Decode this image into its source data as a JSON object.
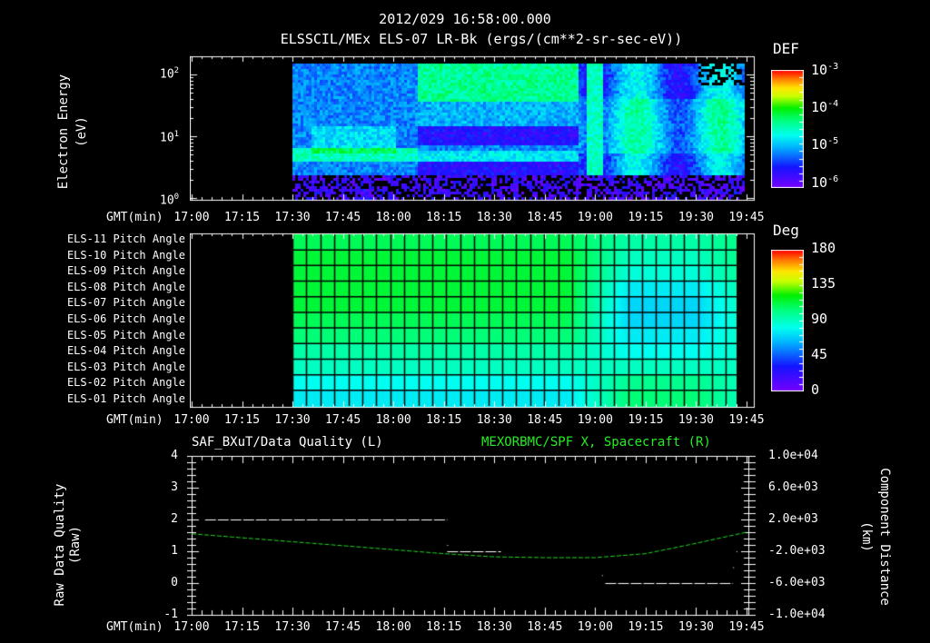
{
  "header": {
    "timestamp": "2012/029 16:58:00.000",
    "panel1_title": "ELSSCIL/MEx ELS-07 LR-Bk  (ergs/(cm**2-sr-sec-eV))"
  },
  "x_axis": {
    "label": "GMT(min)",
    "ticks": [
      "17:00",
      "17:15",
      "17:30",
      "17:45",
      "18:00",
      "18:15",
      "18:30",
      "18:45",
      "19:00",
      "19:15",
      "19:30",
      "19:45"
    ]
  },
  "panel1": {
    "ylabel": "Electron Energy",
    "yunit": "(eV)",
    "yticks": [
      {
        "base": "10",
        "exp": "2"
      },
      {
        "base": "10",
        "exp": "1"
      },
      {
        "base": "10",
        "exp": "0"
      }
    ],
    "colorbar": {
      "title": "DEF",
      "ticks": [
        {
          "base": "10",
          "exp": "-3"
        },
        {
          "base": "10",
          "exp": "-4"
        },
        {
          "base": "10",
          "exp": "-5"
        },
        {
          "base": "10",
          "exp": "-6"
        }
      ]
    }
  },
  "panel2": {
    "rows": [
      "ELS-11 Pitch Angle",
      "ELS-10 Pitch Angle",
      "ELS-09 Pitch Angle",
      "ELS-08 Pitch Angle",
      "ELS-07 Pitch Angle",
      "ELS-06 Pitch Angle",
      "ELS-05 Pitch Angle",
      "ELS-04 Pitch Angle",
      "ELS-03 Pitch Angle",
      "ELS-02 Pitch Angle",
      "ELS-01 Pitch Angle"
    ],
    "colorbar": {
      "title": "Deg",
      "ticks": [
        "180",
        "135",
        "90",
        "45",
        "0"
      ]
    }
  },
  "panel3": {
    "left_title": "SAF_BXuT/Data Quality (L)",
    "right_title": "MEXORBMC/SPF X, Spacecraft (R)",
    "ylabel_left": "Raw Data Quality",
    "yunit_left": "(Raw)",
    "yticks_left": [
      "4",
      "3",
      "2",
      "1",
      "0",
      "-1"
    ],
    "ylabel_right": "Component Distance",
    "yunit_right": "(km)",
    "yticks_right": [
      "1.0e+04",
      "6.0e+03",
      "2.0e+03",
      "-2.0e+03",
      "-6.0e+03",
      "-1.0e+04"
    ],
    "colors": {
      "left_series": "#ffffff",
      "right_series": "#22dd22",
      "right_title": "#22ee22"
    }
  },
  "chart_data": [
    {
      "type": "heatmap",
      "title": "ELSSCIL/MEx ELS-07 LR-Bk (ergs/(cm**2-sr-sec-eV))",
      "xlabel": "GMT(min)",
      "ylabel": "Electron Energy (eV)",
      "x_range": [
        "17:00",
        "19:45"
      ],
      "y_range": [
        1,
        150
      ],
      "y_scale": "log",
      "colorbar": {
        "label": "DEF",
        "range": [
          1e-06,
          0.001
        ],
        "scale": "log"
      },
      "data_start": "17:30",
      "features": [
        {
          "desc": "cyan band ~5-8 eV",
          "time": "17:30-18:05"
        },
        {
          "desc": "green high-flux band ~30-100 eV",
          "time": "18:07-18:55"
        },
        {
          "desc": "depleted region ~10-20 eV",
          "time": "18:07-18:55"
        },
        {
          "desc": "vertical burst",
          "time": "18:57-19:00"
        },
        {
          "desc": "diffuse cyan/green 5-50 eV",
          "time": "19:00-19:45"
        }
      ]
    },
    {
      "type": "heatmap",
      "title": "ELS Pitch Angle",
      "xlabel": "GMT(min)",
      "categories": [
        "ELS-11",
        "ELS-10",
        "ELS-09",
        "ELS-08",
        "ELS-07",
        "ELS-06",
        "ELS-05",
        "ELS-04",
        "ELS-03",
        "ELS-02",
        "ELS-01"
      ],
      "colorbar": {
        "label": "Deg",
        "range": [
          0,
          180
        ]
      },
      "x_range": [
        "17:30",
        "19:42"
      ],
      "approx_values_deg_at_17_30": [
        100,
        105,
        105,
        105,
        105,
        100,
        95,
        85,
        80,
        70,
        65
      ],
      "approx_values_deg_at_19_20": [
        85,
        80,
        75,
        65,
        60,
        60,
        65,
        70,
        80,
        90,
        95
      ]
    },
    {
      "type": "line",
      "title": "SAF_BXuT/Data Quality (L) & MEXORBMC/SPF X, Spacecraft (R)",
      "xlabel": "GMT(min)",
      "series": [
        {
          "name": "Data Quality (L)",
          "axis": "left",
          "ylim": [
            -1,
            4
          ],
          "segments": [
            {
              "x": [
                "17:04",
                "18:15"
              ],
              "y": 2
            },
            {
              "x": [
                "18:15",
                "18:35"
              ],
              "y": 1
            },
            {
              "x": [
                "19:03",
                "19:41"
              ],
              "y": 0
            }
          ]
        },
        {
          "name": "SPF X, Spacecraft (R)",
          "axis": "right",
          "ylim": [
            -10000,
            10000
          ],
          "x": [
            "17:00",
            "17:15",
            "17:30",
            "17:45",
            "18:00",
            "18:15",
            "18:30",
            "18:45",
            "19:00",
            "19:15",
            "19:30",
            "19:45"
          ],
          "values": [
            200,
            -300,
            -800,
            -1300,
            -1800,
            -2300,
            -2700,
            -2800,
            -2800,
            -2300,
            -1000,
            400
          ]
        }
      ]
    }
  ]
}
